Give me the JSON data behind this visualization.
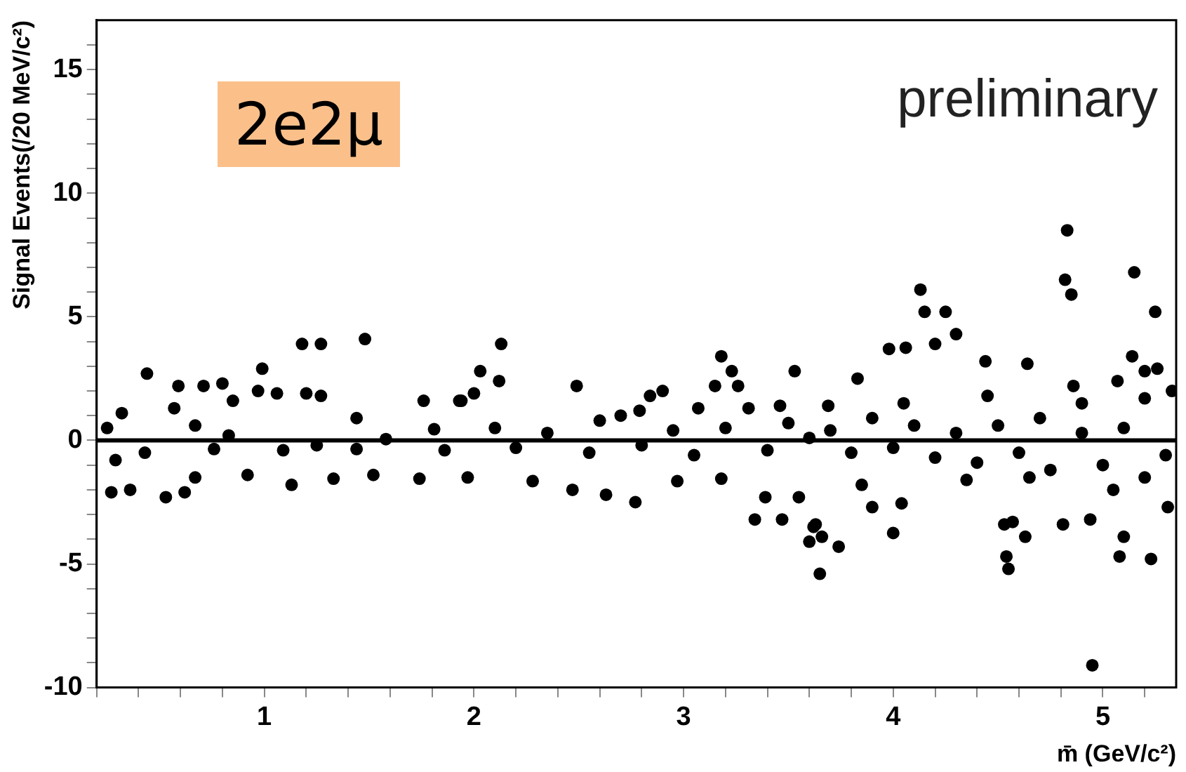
{
  "chart_data": {
    "type": "scatter",
    "xlabel": "m̄ (GeV/c²)",
    "ylabel": "Signal Events(/20 MeV/c²)",
    "annotations": [
      "2e2μ",
      "preliminary"
    ],
    "xlim": [
      0.2,
      5.35
    ],
    "ylim": [
      -10,
      17
    ],
    "xticks": [
      {
        "value": 0.2,
        "label": null
      },
      {
        "value": 0.4,
        "label": null
      },
      {
        "value": 0.6,
        "label": null
      },
      {
        "value": 0.8,
        "label": null
      },
      1,
      {
        "value": 1.2,
        "label": null
      },
      {
        "value": 1.4,
        "label": null
      },
      {
        "value": 1.6,
        "label": null
      },
      {
        "value": 1.8,
        "label": null
      },
      2,
      {
        "value": 2.2,
        "label": null
      },
      {
        "value": 2.4,
        "label": null
      },
      {
        "value": 2.6,
        "label": null
      },
      {
        "value": 2.8,
        "label": null
      },
      3,
      {
        "value": 3.2,
        "label": null
      },
      {
        "value": 3.4,
        "label": null
      },
      {
        "value": 3.6,
        "label": null
      },
      {
        "value": 3.8,
        "label": null
      },
      4,
      {
        "value": 4.2,
        "label": null
      },
      {
        "value": 4.4,
        "label": null
      },
      {
        "value": 4.6,
        "label": null
      },
      {
        "value": 4.8,
        "label": null
      },
      5,
      {
        "value": 5.2,
        "label": null
      }
    ],
    "yticks": [
      -10,
      {
        "value": -9,
        "label": null
      },
      {
        "value": -8,
        "label": null
      },
      {
        "value": -7,
        "label": null
      },
      {
        "value": -6,
        "label": null
      },
      -5,
      {
        "value": -4,
        "label": null
      },
      {
        "value": -3,
        "label": null
      },
      {
        "value": -2,
        "label": null
      },
      {
        "value": -1,
        "label": null
      },
      0,
      {
        "value": 1,
        "label": null
      },
      {
        "value": 2,
        "label": null
      },
      {
        "value": 3,
        "label": null
      },
      {
        "value": 4,
        "label": null
      },
      5,
      {
        "value": 6,
        "label": null
      },
      {
        "value": 7,
        "label": null
      },
      {
        "value": 8,
        "label": null
      },
      {
        "value": 9,
        "label": null
      },
      10,
      {
        "value": 11,
        "label": null
      },
      {
        "value": 12,
        "label": null
      },
      {
        "value": 13,
        "label": null
      },
      {
        "value": 14,
        "label": null
      },
      15,
      {
        "value": 16,
        "label": null
      }
    ],
    "grid": false,
    "legend": false,
    "marker": "circle",
    "ref_lines": [
      {
        "axis": "y",
        "value": 0,
        "color": "#000000"
      }
    ],
    "series": [
      {
        "color": "#000000",
        "x": [
          4.83,
          4.82,
          4.85,
          5.15,
          5.25,
          4.13,
          4.15,
          4.25,
          4.2,
          4.3,
          3.98,
          4.06,
          4.95,
          4.55,
          4.54,
          4.53,
          4.57,
          4.63,
          5.08,
          5.1,
          5.23,
          4.81,
          4.94,
          5.31,
          4.0,
          3.65,
          3.74,
          3.66,
          3.63,
          3.9,
          4.04,
          4.64,
          4.44,
          5.14,
          5.2,
          5.26,
          5.33,
          3.83,
          3.69,
          5.07,
          4.86,
          2.13,
          2.03,
          2.12,
          1.94,
          2.0,
          2.49,
          2.77,
          3.34,
          3.47,
          3.62,
          3.6,
          3.18,
          3.23,
          3.15,
          3.26,
          3.53,
          2.9,
          2.84,
          2.7,
          2.79,
          1.97,
          2.28,
          2.47,
          2.63,
          2.97,
          3.18,
          3.55,
          3.39,
          3.46,
          3.07,
          3.31,
          0.44,
          0.59,
          0.71,
          0.8,
          0.99,
          0.97,
          1.06,
          1.18,
          1.27,
          1.2,
          1.27,
          1.48,
          1.76,
          1.93,
          0.85,
          0.32,
          0.57,
          0.27,
          0.36,
          0.53,
          0.62,
          0.29,
          0.67,
          0.92,
          1.13,
          1.33,
          1.52,
          1.74,
          0.43,
          0.76,
          1.09,
          1.44,
          1.86,
          0.83,
          1.25,
          1.58,
          1.81,
          0.67,
          1.44,
          2.1,
          2.2,
          2.35,
          2.55,
          2.6,
          2.8,
          2.95,
          3.05,
          3.2,
          3.4,
          3.5,
          3.6,
          3.7,
          3.8,
          3.9,
          4.0,
          4.1,
          4.2,
          4.3,
          4.4,
          4.5,
          4.6,
          4.7,
          4.75,
          4.9,
          5.0,
          5.1,
          5.2,
          5.3,
          3.85,
          4.35,
          4.65,
          5.05,
          4.05,
          4.45,
          4.9,
          5.2,
          0.25
        ],
        "values": [
          8.5,
          6.5,
          5.9,
          6.8,
          5.2,
          6.1,
          5.2,
          5.2,
          3.9,
          4.3,
          3.7,
          3.75,
          -9.1,
          -5.2,
          -4.7,
          -3.4,
          -3.3,
          -3.9,
          -4.7,
          -3.9,
          -4.8,
          -3.4,
          -3.2,
          -2.7,
          -3.75,
          -5.4,
          -4.3,
          -3.9,
          -3.4,
          -2.7,
          -2.55,
          3.1,
          3.2,
          3.4,
          2.8,
          2.9,
          2.0,
          2.5,
          1.4,
          2.4,
          2.2,
          3.9,
          2.8,
          2.4,
          1.6,
          1.9,
          2.2,
          -2.5,
          -3.2,
          -3.2,
          -3.5,
          -4.1,
          3.4,
          2.8,
          2.2,
          2.2,
          2.8,
          2.0,
          1.8,
          1.0,
          1.2,
          -1.5,
          -1.65,
          -2.0,
          -2.2,
          -1.65,
          -1.55,
          -2.3,
          -2.3,
          1.4,
          1.3,
          1.3,
          2.7,
          2.2,
          2.2,
          2.3,
          2.9,
          2.0,
          1.9,
          3.9,
          3.9,
          1.9,
          1.8,
          4.1,
          1.6,
          1.6,
          1.6,
          1.1,
          1.3,
          -2.1,
          -2.0,
          -2.3,
          -2.1,
          -0.8,
          -1.5,
          -1.4,
          -1.8,
          -1.55,
          -1.4,
          -1.55,
          -0.5,
          -0.35,
          -0.4,
          -0.35,
          -0.4,
          0.2,
          -0.2,
          0.05,
          0.45,
          0.6,
          0.9,
          0.5,
          -0.3,
          0.3,
          -0.5,
          0.8,
          -0.2,
          0.4,
          -0.6,
          0.5,
          -0.4,
          0.7,
          0.1,
          0.4,
          -0.5,
          0.9,
          -0.3,
          0.6,
          -0.7,
          0.3,
          -0.9,
          0.6,
          -0.5,
          0.9,
          -1.2,
          0.3,
          -1.0,
          0.5,
          -1.5,
          -0.6,
          -1.8,
          -1.6,
          -1.5,
          -2.0,
          1.5,
          1.8,
          1.5,
          1.7,
          0.5
        ]
      }
    ]
  }
}
